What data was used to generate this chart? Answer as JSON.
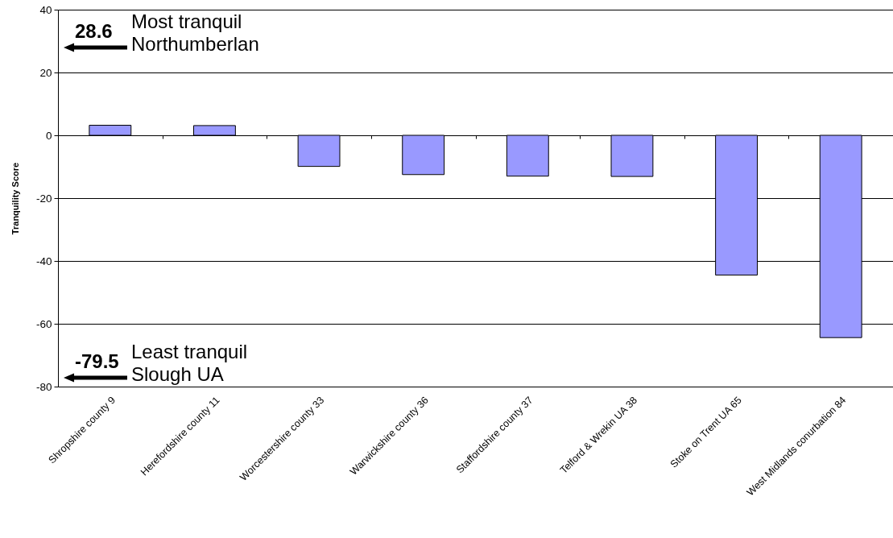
{
  "chart_data": {
    "type": "bar",
    "ylabel": "Tranquility Score",
    "categories": [
      "Shropshire county 9",
      "Herefordshire county 11",
      "Worcestershire county 33",
      "Warwickshire county 36",
      "Staffordshire county 37",
      "Telford & Wrekin UA 38",
      "Stoke on Trent UA 65",
      "West Midlands conurbation 84"
    ],
    "values": [
      3.2,
      3.1,
      -9.9,
      -12.5,
      -13.0,
      -13.1,
      -44.5,
      -64.4
    ],
    "color": "#9999ff",
    "ylim": [
      -80,
      40
    ],
    "yticks": [
      -80,
      -60,
      -40,
      -20,
      0,
      20,
      40
    ],
    "grid": "y",
    "annotations": [
      "28.6",
      "Most tranquil\nNorthumberlan",
      "-79.5",
      "Least tranquil\nSlough UA"
    ]
  }
}
